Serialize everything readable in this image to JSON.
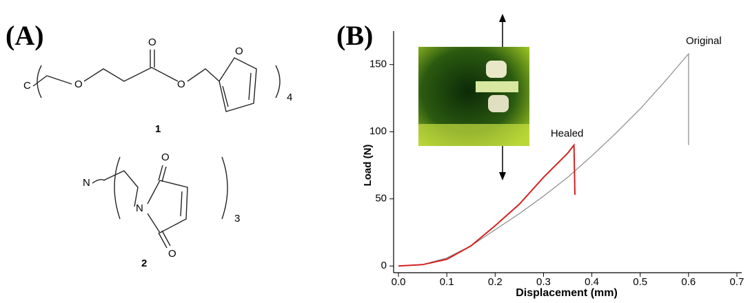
{
  "panel_a": {
    "label": "(A)",
    "compound_1": {
      "core": "C",
      "oxygens": [
        "O",
        "O",
        "O",
        "O"
      ],
      "repeat": "4",
      "number": "1"
    },
    "compound_2": {
      "core": "N",
      "nitrogen": "N",
      "oxygens": [
        "O",
        "O"
      ],
      "repeat": "3",
      "number": "2"
    }
  },
  "chart_data": {
    "type": "line",
    "label": "(B)",
    "xlabel": "Displacement (mm)",
    "ylabel": "Load (N)",
    "xlim": [
      -0.01,
      0.71
    ],
    "ylim": [
      -5,
      175
    ],
    "xticks": [
      {
        "value": 0,
        "label": "0.0"
      },
      0.1,
      0.2,
      0.3,
      0.4,
      0.5,
      0.6,
      0.7
    ],
    "yticks": [
      0,
      50,
      100,
      150
    ],
    "series": [
      {
        "name": "Original",
        "color": "#8a8a8a",
        "x": [
          0,
          0.05,
          0.1,
          0.15,
          0.2,
          0.25,
          0.3,
          0.35,
          0.4,
          0.45,
          0.5,
          0.55,
          0.6,
          0.6
        ],
        "values": [
          0,
          1,
          6,
          15,
          27,
          39,
          52,
          66,
          82,
          99,
          117,
          137,
          158,
          90
        ]
      },
      {
        "name": "Healed",
        "color": "#d42020",
        "x": [
          0,
          0.05,
          0.1,
          0.15,
          0.2,
          0.25,
          0.3,
          0.35,
          0.363,
          0.365
        ],
        "values": [
          0,
          1,
          5,
          15,
          30,
          46,
          66,
          84,
          90,
          53
        ]
      }
    ]
  }
}
